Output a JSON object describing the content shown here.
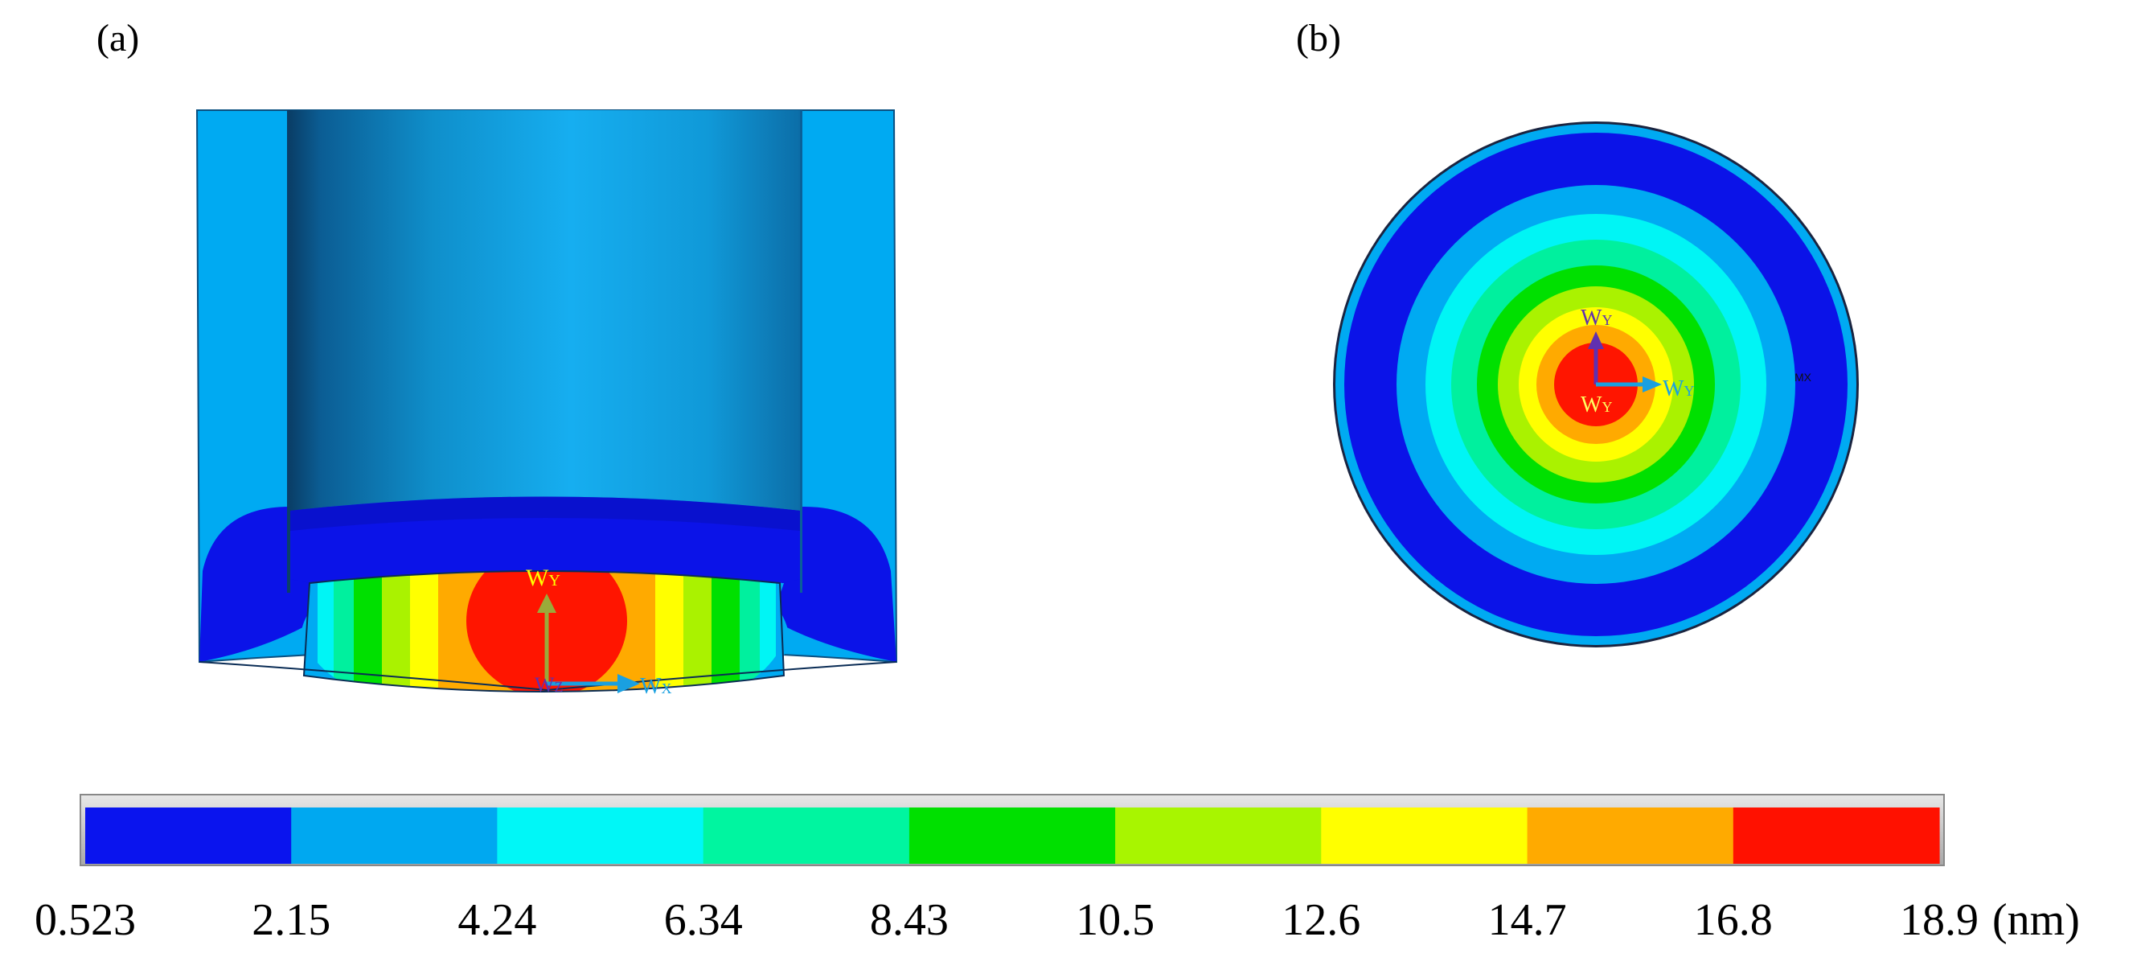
{
  "panels": {
    "a": {
      "label": "(a)"
    },
    "b": {
      "label": "(b)"
    }
  },
  "triad_a": {
    "y": "W",
    "y_sub": "Y",
    "z": "W",
    "z_sub": "Z",
    "x": "W",
    "x_sub": "X"
  },
  "triad_b": {
    "top": "W",
    "top_sub": "Y",
    "right": "W",
    "right_sub": "Y",
    "center": "W",
    "center_sub": "Y",
    "mx": "MX"
  },
  "colorbar": {
    "unit": "(nm)",
    "ticks": [
      "0.523",
      "2.15",
      "4.24",
      "6.34",
      "8.43",
      "10.5",
      "12.6",
      "14.7",
      "16.8",
      "18.9"
    ],
    "colors": [
      "#0a14ee",
      "#00a8f0",
      "#00f7f7",
      "#00f5a0",
      "#00e000",
      "#a8f500",
      "#ffff00",
      "#ffaa00",
      "#ff1100"
    ]
  },
  "colors": {
    "shell": "#00aaf2",
    "deep_blue": "#0b13e8",
    "cyan": "#00f5f5",
    "spring": "#00f09e",
    "green": "#00e000",
    "lime": "#aaf200",
    "yellow": "#ffff00",
    "orange": "#ffaa00",
    "red": "#ff1500",
    "triad_green": "#9aaa3a",
    "triad_blue": "#1aa0e0",
    "triad_purple": "#6030b0"
  }
}
